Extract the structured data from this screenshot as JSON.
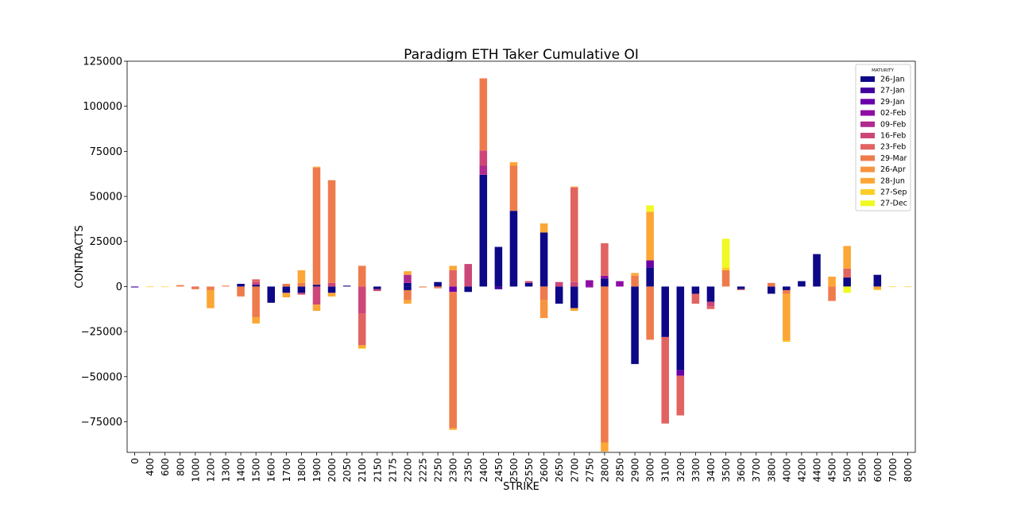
{
  "chart_data": {
    "type": "bar",
    "stacked": true,
    "diverging": true,
    "title": "Paradigm ETH Taker Cumulative OI",
    "xlabel": "STRIKE",
    "ylabel": "CONTRACTS",
    "ylim": [
      -92000,
      125000
    ],
    "yticks": [
      125000,
      100000,
      75000,
      50000,
      25000,
      0,
      -25000,
      -50000,
      -75000
    ],
    "grid": false,
    "legend_title": "MATURITY",
    "legend_position": "top-right",
    "categories": [
      "0",
      "400",
      "600",
      "800",
      "1000",
      "1200",
      "1300",
      "1400",
      "1500",
      "1600",
      "1700",
      "1800",
      "1900",
      "2000",
      "2050",
      "2100",
      "2150",
      "2175",
      "2200",
      "2225",
      "2250",
      "2300",
      "2350",
      "2400",
      "2450",
      "2500",
      "2550",
      "2600",
      "2650",
      "2700",
      "2750",
      "2800",
      "2850",
      "2900",
      "3000",
      "3100",
      "3200",
      "3300",
      "3400",
      "3500",
      "3600",
      "3700",
      "3800",
      "4000",
      "4200",
      "4400",
      "4500",
      "5000",
      "5500",
      "6000",
      "7000",
      "8000"
    ],
    "series": [
      {
        "name": "26-Jan",
        "color": "#0d0887",
        "pos": [
          0,
          0,
          0,
          0,
          0,
          0,
          0,
          1500,
          1000,
          0,
          0,
          0,
          1000,
          0,
          500,
          0,
          0,
          0,
          2000,
          0,
          2500,
          0,
          0,
          62000,
          22000,
          42000,
          2000,
          30000,
          0,
          0,
          0,
          4500,
          0,
          0,
          10500,
          0,
          0,
          0,
          0,
          0,
          0,
          0,
          0,
          0,
          3000,
          18000,
          0,
          5000,
          0,
          6500,
          0,
          0
        ],
        "neg": [
          0,
          0,
          0,
          0,
          0,
          0,
          0,
          0,
          0,
          -9000,
          -3500,
          -3500,
          0,
          -3500,
          0,
          0,
          -1500,
          0,
          -2000,
          0,
          0,
          0,
          -3000,
          0,
          0,
          0,
          0,
          0,
          -9500,
          -12000,
          0,
          0,
          0,
          -43000,
          0,
          -28000,
          -46500,
          -4000,
          -8500,
          0,
          -1500,
          0,
          -4000,
          -2000,
          0,
          0,
          0,
          0,
          0,
          0,
          0,
          0
        ]
      },
      {
        "name": "27-Jan",
        "color": "#41049d",
        "pos": [
          0,
          0,
          0,
          0,
          0,
          0,
          0,
          0,
          0,
          0,
          0,
          0,
          0,
          0,
          0,
          0,
          0,
          0,
          0,
          0,
          0,
          0,
          0,
          0,
          0,
          0,
          0,
          0,
          0,
          0,
          0,
          0,
          0,
          0,
          0,
          0,
          0,
          0,
          0,
          0,
          0,
          0,
          0,
          0,
          0,
          0,
          0,
          0,
          0,
          0,
          0,
          0
        ],
        "neg": [
          -500,
          0,
          0,
          0,
          0,
          0,
          0,
          0,
          0,
          0,
          0,
          0,
          0,
          0,
          0,
          0,
          0,
          0,
          0,
          0,
          0,
          0,
          0,
          0,
          -1500,
          0,
          0,
          0,
          0,
          0,
          0,
          0,
          0,
          0,
          0,
          0,
          0,
          0,
          0,
          0,
          0,
          0,
          0,
          0,
          0,
          0,
          0,
          0,
          0,
          0,
          0,
          0
        ]
      },
      {
        "name": "29-Jan",
        "color": "#6a00a8",
        "pos": [
          0,
          0,
          0,
          0,
          0,
          0,
          0,
          0,
          0,
          0,
          0,
          0,
          0,
          0,
          0,
          0,
          0,
          0,
          0,
          0,
          0,
          0,
          0,
          0,
          0,
          0,
          0,
          0,
          0,
          0,
          0,
          0,
          0,
          0,
          4000,
          0,
          0,
          0,
          0,
          0,
          0,
          0,
          0,
          0,
          0,
          0,
          0,
          0,
          0,
          0,
          0,
          0
        ],
        "neg": [
          0,
          0,
          0,
          0,
          0,
          0,
          0,
          0,
          0,
          0,
          0,
          0,
          0,
          0,
          0,
          0,
          0,
          0,
          0,
          0,
          0,
          -3000,
          0,
          0,
          0,
          0,
          0,
          0,
          0,
          0,
          0,
          0,
          0,
          0,
          0,
          0,
          -3000,
          0,
          0,
          0,
          0,
          0,
          0,
          0,
          0,
          0,
          0,
          0,
          0,
          0,
          0,
          0
        ]
      },
      {
        "name": "02-Feb",
        "color": "#8f0da4",
        "pos": [
          0,
          0,
          0,
          0,
          0,
          0,
          0,
          0,
          0,
          0,
          0,
          0,
          0,
          0,
          0,
          0,
          0,
          0,
          0,
          0,
          0,
          0,
          0,
          0,
          0,
          0,
          0,
          0,
          0,
          0,
          3500,
          1500,
          3000,
          0,
          0,
          0,
          0,
          0,
          0,
          0,
          0,
          0,
          0,
          0,
          0,
          0,
          0,
          0,
          0,
          0,
          0,
          0
        ],
        "neg": [
          0,
          0,
          0,
          0,
          0,
          0,
          0,
          0,
          0,
          0,
          0,
          0,
          0,
          0,
          0,
          0,
          0,
          0,
          0,
          0,
          0,
          0,
          0,
          0,
          0,
          0,
          0,
          0,
          0,
          0,
          -500,
          0,
          0,
          0,
          0,
          0,
          0,
          0,
          0,
          0,
          0,
          0,
          0,
          0,
          0,
          0,
          0,
          0,
          0,
          0,
          0,
          0
        ]
      },
      {
        "name": "09-Feb",
        "color": "#b12a90",
        "pos": [
          0,
          0,
          0,
          0,
          0,
          0,
          0,
          0,
          0,
          0,
          0,
          0,
          0,
          0,
          0,
          0,
          0,
          0,
          4500,
          0,
          0,
          0,
          0,
          5000,
          0,
          0,
          0,
          0,
          0,
          0,
          0,
          0,
          0,
          0,
          0,
          0,
          0,
          0,
          0,
          0,
          0,
          0,
          0,
          0,
          0,
          0,
          0,
          0,
          0,
          0,
          0,
          0
        ],
        "neg": [
          0,
          0,
          0,
          0,
          0,
          0,
          0,
          0,
          0,
          0,
          0,
          0,
          0,
          0,
          0,
          0,
          0,
          0,
          0,
          0,
          0,
          0,
          0,
          0,
          0,
          0,
          0,
          0,
          0,
          0,
          0,
          0,
          0,
          0,
          0,
          0,
          0,
          0,
          0,
          0,
          0,
          0,
          0,
          0,
          0,
          0,
          0,
          0,
          0,
          0,
          0,
          0
        ]
      },
      {
        "name": "16-Feb",
        "color": "#cc4778",
        "pos": [
          0,
          0,
          0,
          0,
          0,
          0,
          0,
          0,
          1500,
          0,
          0,
          0,
          0,
          2000,
          0,
          0,
          0,
          0,
          0,
          0,
          0,
          0,
          12500,
          8500,
          0,
          0,
          1000,
          0,
          2500,
          2500,
          0,
          0,
          0,
          0,
          0,
          0,
          0,
          0,
          0,
          0,
          0,
          0,
          0,
          0,
          0,
          0,
          0,
          0,
          0,
          0,
          0,
          0
        ],
        "neg": [
          0,
          0,
          0,
          0,
          0,
          0,
          0,
          0,
          0,
          0,
          0,
          -1000,
          -10000,
          0,
          0,
          -15000,
          -1000,
          0,
          0,
          0,
          0,
          0,
          0,
          0,
          0,
          0,
          0,
          0,
          0,
          0,
          0,
          0,
          0,
          0,
          0,
          0,
          0,
          0,
          -2500,
          0,
          0,
          0,
          0,
          0,
          0,
          0,
          0,
          0,
          0,
          0,
          0,
          0
        ]
      },
      {
        "name": "23-Feb",
        "color": "#e16462",
        "pos": [
          0,
          0,
          0,
          0,
          0,
          0,
          0,
          0,
          1500,
          0,
          0,
          0,
          0,
          0,
          0,
          0,
          0,
          0,
          0,
          0,
          0,
          9000,
          0,
          0,
          0,
          0,
          0,
          0,
          0,
          52500,
          0,
          18000,
          0,
          0,
          0,
          0,
          0,
          0,
          0,
          0,
          0,
          0,
          0,
          0,
          0,
          0,
          0,
          5000,
          0,
          0,
          0,
          0
        ],
        "neg": [
          0,
          0,
          0,
          0,
          -500,
          0,
          0,
          0,
          0,
          0,
          0,
          0,
          0,
          0,
          0,
          -17500,
          0,
          0,
          0,
          0,
          0,
          0,
          0,
          0,
          0,
          0,
          0,
          0,
          0,
          0,
          0,
          0,
          0,
          0,
          0,
          -48000,
          -22000,
          -5500,
          -1500,
          0,
          -500,
          0,
          0,
          0,
          0,
          0,
          0,
          0,
          0,
          0,
          0,
          0
        ]
      },
      {
        "name": "29-Mar",
        "color": "#ee7b4c",
        "pos": [
          0,
          0,
          0,
          800,
          0,
          0,
          500,
          0,
          0,
          0,
          1500,
          2000,
          65000,
          57000,
          0,
          11500,
          0,
          0,
          0,
          0,
          0,
          0,
          0,
          40000,
          0,
          25000,
          0,
          0,
          0,
          0,
          0,
          0,
          0,
          6000,
          0,
          0,
          0,
          0,
          0,
          9000,
          0,
          0,
          2000,
          0,
          0,
          0,
          0,
          0,
          0,
          0,
          0,
          0
        ],
        "neg": [
          0,
          0,
          0,
          0,
          -1000,
          -2000,
          0,
          -5500,
          -17000,
          0,
          0,
          0,
          0,
          0,
          0,
          0,
          0,
          0,
          -5500,
          -500,
          -1000,
          -75500,
          0,
          0,
          0,
          0,
          0,
          -7500,
          0,
          0,
          0,
          -86500,
          0,
          0,
          -29500,
          0,
          0,
          0,
          0,
          0,
          0,
          0,
          0,
          -2000,
          0,
          0,
          -8000,
          0,
          0,
          0,
          0,
          0
        ]
      },
      {
        "name": "26-Apr",
        "color": "#f89441",
        "pos": [
          0,
          0,
          0,
          0,
          0,
          0,
          0,
          0,
          0,
          0,
          0,
          0,
          0,
          0,
          0,
          0,
          0,
          0,
          0,
          0,
          0,
          0,
          0,
          0,
          0,
          0,
          0,
          0,
          0,
          0,
          0,
          0,
          0,
          0,
          0,
          0,
          0,
          0,
          0,
          0,
          0,
          0,
          0,
          0,
          0,
          0,
          0,
          0,
          0,
          0,
          0,
          0
        ],
        "neg": [
          0,
          0,
          0,
          0,
          0,
          0,
          0,
          0,
          0,
          0,
          0,
          0,
          0,
          0,
          0,
          0,
          0,
          0,
          0,
          0,
          0,
          0,
          0,
          0,
          0,
          0,
          0,
          -10000,
          0,
          0,
          0,
          0,
          0,
          0,
          0,
          0,
          0,
          0,
          0,
          0,
          0,
          0,
          0,
          0,
          0,
          0,
          0,
          0,
          0,
          0,
          0,
          0
        ]
      },
      {
        "name": "28-Jun",
        "color": "#fca636",
        "pos": [
          0,
          0,
          0,
          0,
          0,
          0,
          0,
          0,
          0,
          0,
          0,
          7000,
          500,
          0,
          0,
          0,
          0,
          0,
          2000,
          0,
          0,
          2500,
          0,
          0,
          0,
          2000,
          0,
          5000,
          0,
          500,
          0,
          0,
          0,
          1500,
          27000,
          0,
          0,
          0,
          0,
          0,
          0,
          0,
          0,
          0,
          0,
          0,
          5500,
          12500,
          0,
          0,
          0,
          0
        ],
        "neg": [
          0,
          0,
          0,
          0,
          0,
          -10000,
          0,
          0,
          -3500,
          0,
          -2500,
          0,
          -3500,
          -2000,
          0,
          -1500,
          0,
          0,
          -2000,
          0,
          0,
          -1000,
          0,
          0,
          0,
          0,
          0,
          0,
          0,
          -1500,
          0,
          -5000,
          0,
          0,
          0,
          0,
          0,
          0,
          0,
          0,
          0,
          0,
          0,
          -26000,
          0,
          0,
          0,
          0,
          0,
          -1500,
          0,
          0
        ]
      },
      {
        "name": "27-Sep",
        "color": "#fcce25",
        "pos": [
          0,
          0,
          0,
          0,
          0,
          0,
          0,
          0,
          0,
          0,
          0,
          0,
          0,
          0,
          0,
          0,
          0,
          0,
          0,
          0,
          0,
          0,
          0,
          0,
          0,
          0,
          0,
          0,
          0,
          0,
          0,
          0,
          0,
          0,
          0,
          0,
          0,
          0,
          0,
          1500,
          0,
          0,
          0,
          0,
          0,
          0,
          0,
          0,
          0,
          0,
          0,
          0
        ],
        "neg": [
          0,
          -300,
          -300,
          0,
          0,
          0,
          0,
          0,
          0,
          0,
          0,
          0,
          0,
          0,
          0,
          -500,
          0,
          0,
          0,
          0,
          0,
          0,
          0,
          0,
          0,
          0,
          0,
          0,
          0,
          0,
          0,
          0,
          0,
          0,
          0,
          0,
          0,
          0,
          0,
          0,
          0,
          0,
          0,
          -700,
          0,
          0,
          0,
          0,
          0,
          -500,
          -300,
          -300
        ]
      },
      {
        "name": "27-Dec",
        "color": "#f0f921",
        "pos": [
          0,
          0,
          0,
          0,
          0,
          0,
          0,
          0,
          0,
          0,
          0,
          0,
          0,
          0,
          0,
          0,
          0,
          0,
          0,
          0,
          0,
          0,
          0,
          0,
          0,
          0,
          0,
          0,
          0,
          0,
          0,
          0,
          0,
          0,
          3500,
          0,
          0,
          0,
          0,
          16000,
          0,
          0,
          0,
          0,
          0,
          0,
          0,
          0,
          0,
          0,
          0,
          0
        ],
        "neg": [
          0,
          0,
          0,
          0,
          0,
          0,
          0,
          0,
          0,
          0,
          0,
          0,
          0,
          0,
          0,
          0,
          0,
          0,
          0,
          0,
          0,
          0,
          0,
          0,
          0,
          0,
          0,
          0,
          0,
          0,
          0,
          0,
          0,
          0,
          0,
          0,
          0,
          0,
          0,
          0,
          0,
          0,
          0,
          0,
          0,
          0,
          0,
          -3500,
          0,
          0,
          0,
          0
        ]
      }
    ]
  }
}
